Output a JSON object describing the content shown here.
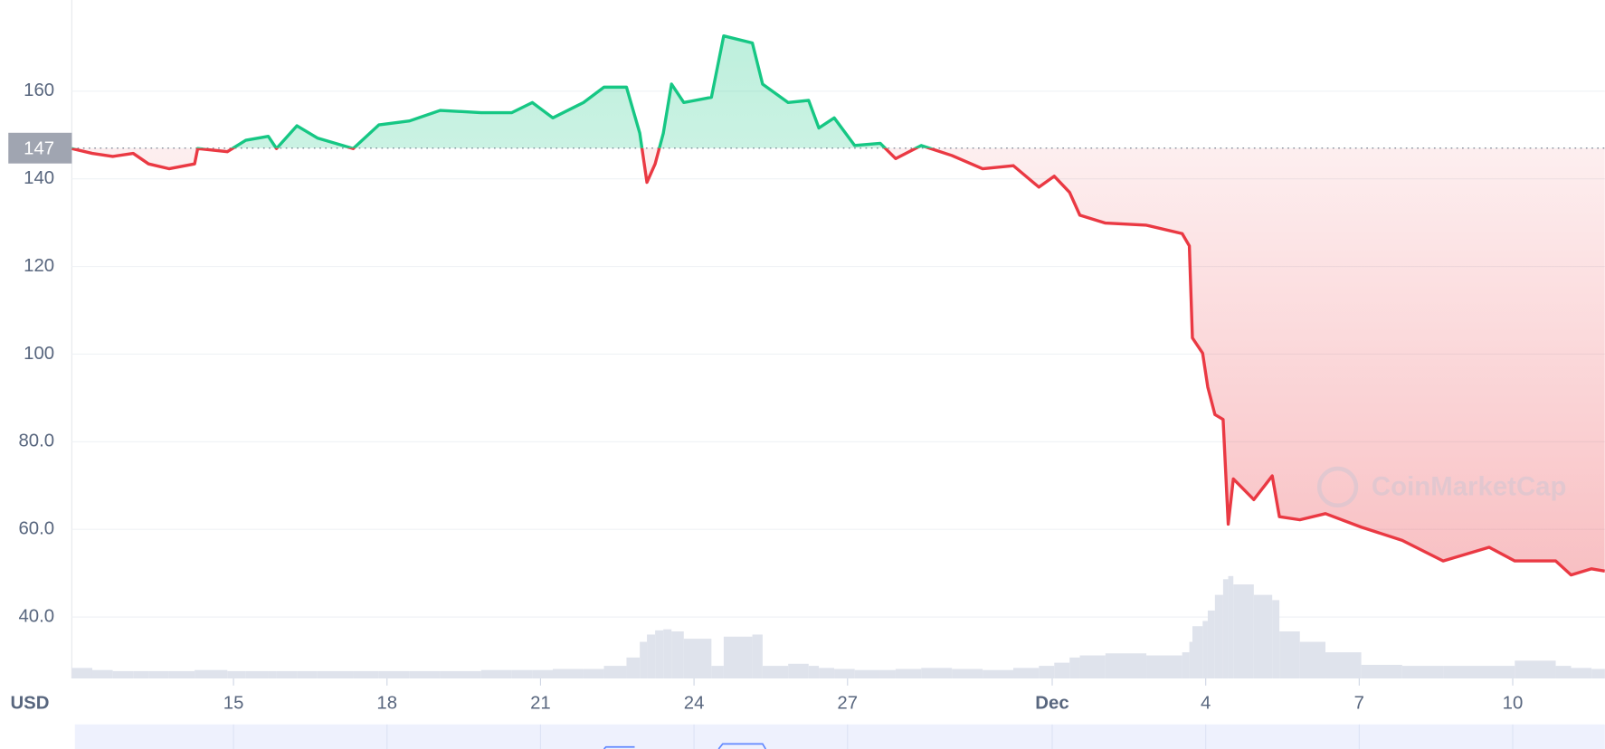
{
  "chart_data": {
    "type": "line",
    "x": [
      11.84,
      12.24,
      12.64,
      13.04,
      13.34,
      13.74,
      14.24,
      14.3,
      14.88,
      15.24,
      15.68,
      15.84,
      16.24,
      16.64,
      17.34,
      17.84,
      18.44,
      19.04,
      19.84,
      20.44,
      20.84,
      21.24,
      21.84,
      22.24,
      22.68,
      22.94,
      23.08,
      23.24,
      23.4,
      23.56,
      23.8,
      24.34,
      24.58,
      25.14,
      25.34,
      25.84,
      26.24,
      26.44,
      26.74,
      27.14,
      27.64,
      27.94,
      28.44,
      29.04,
      29.64,
      30.24,
      30.74,
      31.04,
      31.34,
      31.54,
      32.04,
      32.84,
      33.54,
      33.68,
      33.74,
      33.94,
      34.04,
      34.18,
      34.34,
      34.44,
      34.54,
      34.94,
      35.3,
      35.44,
      35.84,
      36.34,
      37.04,
      37.84,
      38.64,
      39.54,
      40.04,
      40.84,
      41.14,
      41.54,
      41.8
    ],
    "values": [
      146.9,
      145.8,
      145.1,
      145.8,
      143.4,
      142.3,
      143.4,
      146.9,
      146.2,
      148.8,
      149.7,
      146.9,
      152.1,
      149.3,
      146.9,
      152.3,
      153.2,
      155.6,
      155.1,
      155.1,
      157.4,
      153.9,
      157.4,
      160.9,
      160.9,
      150.4,
      139.2,
      143.4,
      150.4,
      161.6,
      157.4,
      158.6,
      172.6,
      171.0,
      161.6,
      157.4,
      157.9,
      151.6,
      153.9,
      147.6,
      148.1,
      144.6,
      147.6,
      145.3,
      142.3,
      143.0,
      138.1,
      140.6,
      136.9,
      131.7,
      129.9,
      129.4,
      127.5,
      124.7,
      103.7,
      100.2,
      92.5,
      86.2,
      85.1,
      61.2,
      71.5,
      66.8,
      72.2,
      62.9,
      62.2,
      63.6,
      60.5,
      57.5,
      52.8,
      55.9,
      52.8,
      52.8,
      49.6,
      51.0,
      50.5
    ],
    "volume": [
      10,
      8,
      7,
      7,
      7,
      7,
      8,
      8,
      7,
      7,
      7,
      7,
      7,
      7,
      7,
      7,
      7,
      7,
      8,
      8,
      8,
      9,
      9,
      12,
      20,
      35,
      42,
      46,
      47,
      45,
      38,
      12,
      40,
      42,
      12,
      14,
      12,
      10,
      9,
      8,
      8,
      9,
      10,
      9,
      8,
      10,
      12,
      15,
      20,
      22,
      24,
      22,
      25,
      35,
      50,
      55,
      65,
      80,
      95,
      98,
      90,
      80,
      75,
      45,
      35,
      25,
      13,
      12,
      12,
      12,
      17,
      12,
      10,
      9,
      9
    ],
    "baseline": 147,
    "up_color": "#16c784",
    "down_color": "#ea3943",
    "volume_color": "#dfe3ec",
    "xlim": [
      11.84,
      41.8
    ],
    "ylim": [
      26,
      180.8
    ],
    "yticks": [
      {
        "value": 40,
        "label": "40.0"
      },
      {
        "value": 60,
        "label": "60.0"
      },
      {
        "value": 80,
        "label": "80.0"
      },
      100,
      120,
      140,
      160
    ],
    "xticks": [
      15,
      18,
      21,
      24,
      27,
      {
        "value": 31,
        "label": "Dec",
        "bold": true
      },
      {
        "value": 34,
        "label": "4"
      },
      {
        "value": 37,
        "label": "7"
      },
      {
        "value": 40,
        "label": "10"
      }
    ],
    "x_axis_label": "USD",
    "watermark": "CoinMarketCap",
    "grid": true
  }
}
